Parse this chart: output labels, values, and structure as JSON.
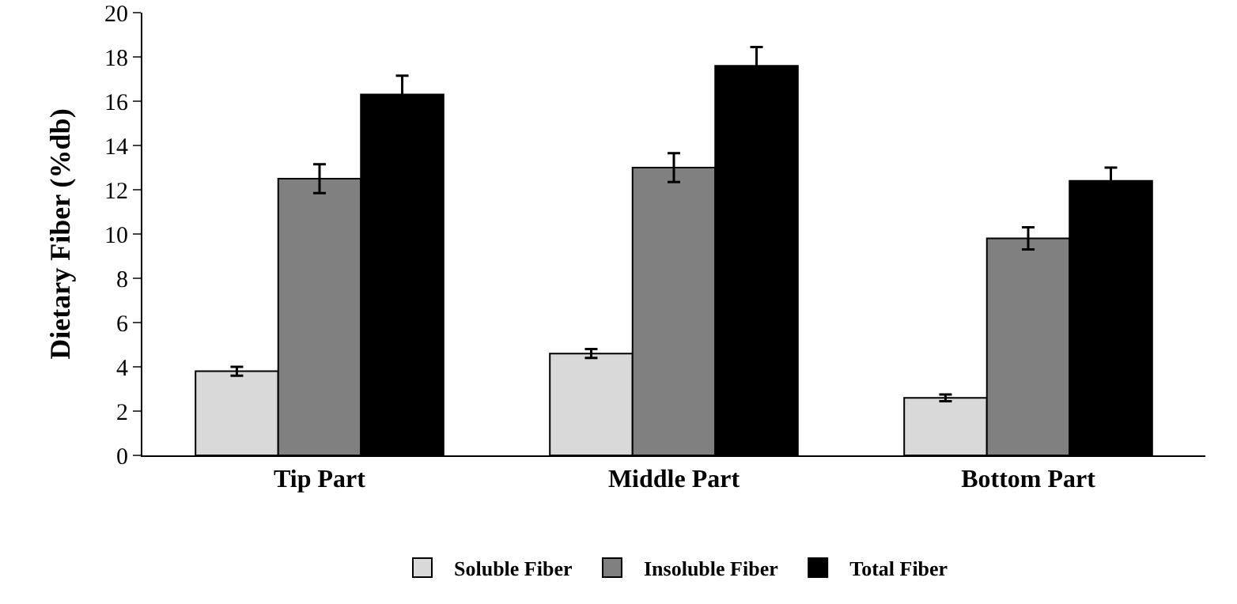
{
  "chart_data": {
    "type": "bar",
    "ylabel": "Dietary Fiber (%db)",
    "categories": [
      "Tip Part",
      "Middle Part",
      "Bottom Part"
    ],
    "series": [
      {
        "name": "Soluble Fiber",
        "color": "#d9d9d9",
        "values": [
          3.8,
          4.6,
          2.6
        ],
        "errors": [
          0.2,
          0.2,
          0.15
        ]
      },
      {
        "name": "Insoluble Fiber",
        "color": "#808080",
        "values": [
          12.5,
          13.0,
          9.8
        ],
        "errors": [
          0.65,
          0.65,
          0.5
        ]
      },
      {
        "name": "Total Fiber",
        "color": "#000000",
        "values": [
          16.3,
          17.6,
          12.4
        ],
        "errors": [
          0.85,
          0.85,
          0.6
        ]
      }
    ],
    "ylim": [
      0,
      20
    ],
    "yticks": [
      0,
      2,
      4,
      6,
      8,
      10,
      12,
      14,
      16,
      18,
      20
    ],
    "grid": false,
    "legend": "bottom"
  }
}
